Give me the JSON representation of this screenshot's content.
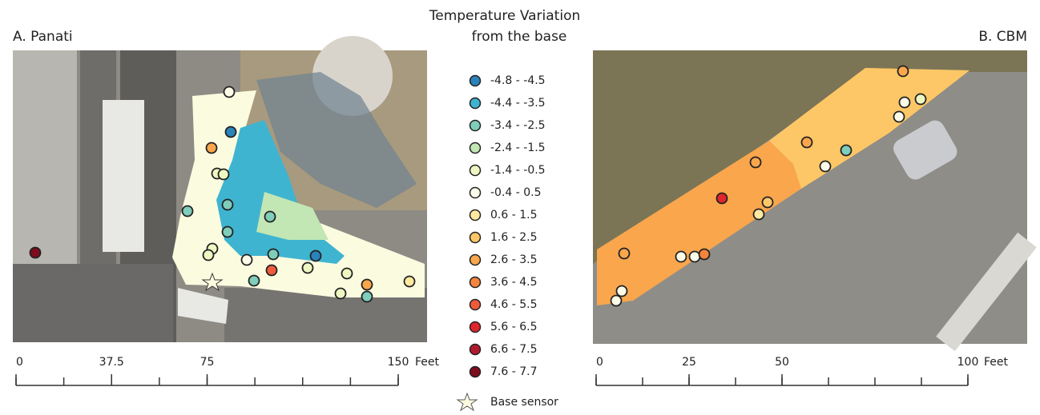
{
  "title_lines": [
    "Temperature Variation",
    "from the base"
  ],
  "panels": [
    {
      "label": "A. Panati",
      "scale": {
        "ticks": [
          0,
          37.5,
          75,
          150
        ],
        "unit": "Feet"
      }
    },
    {
      "label": "B. CBM",
      "scale": {
        "ticks": [
          0,
          25,
          50,
          100
        ],
        "unit": "Feet"
      }
    }
  ],
  "legend": {
    "items": [
      {
        "label": "-4.8 - -4.5",
        "color": "#2b83ba"
      },
      {
        "label": "-4.4 - -3.5",
        "color": "#3fb4d0"
      },
      {
        "label": "-3.4 - -2.5",
        "color": "#7fcdbb"
      },
      {
        "label": "-2.4 - -1.5",
        "color": "#c2e6b4"
      },
      {
        "label": "-1.4 - -0.5",
        "color": "#eef7c2"
      },
      {
        "label": "-0.4 - 0.5",
        "color": "#fbfbe8"
      },
      {
        "label": "0.6 - 1.5",
        "color": "#fde9a0"
      },
      {
        "label": "1.6 - 2.5",
        "color": "#fdc767"
      },
      {
        "label": "2.6 - 3.5",
        "color": "#f9a64d"
      },
      {
        "label": "3.6 - 4.5",
        "color": "#f6843c"
      },
      {
        "label": "4.6 - 5.5",
        "color": "#ef5b3a"
      },
      {
        "label": "5.6 - 6.5",
        "color": "#e0262a"
      },
      {
        "label": "6.6 - 7.5",
        "color": "#b3192e"
      },
      {
        "label": "7.6 - 7.7",
        "color": "#7d0d1e"
      }
    ],
    "base_sensor": "Base sensor"
  }
}
